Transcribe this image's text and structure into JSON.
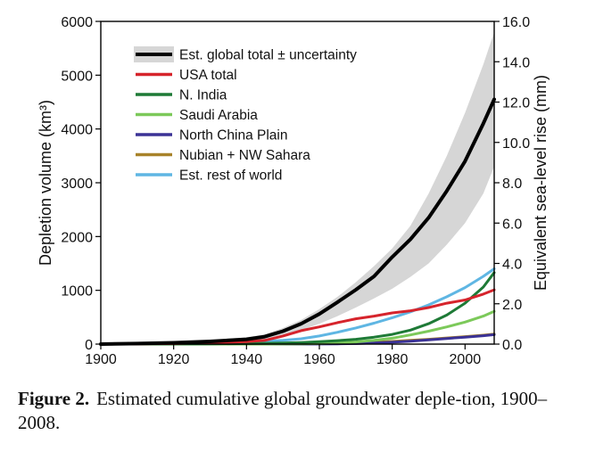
{
  "chart_data": {
    "type": "line",
    "ylabel": "Depletion volume (km³)",
    "y2label": "Equivalent sea-level rise (mm)",
    "xlim": [
      1900,
      2008
    ],
    "ylim": [
      0,
      6000
    ],
    "y2lim": [
      0,
      16.0
    ],
    "xticks": [
      "1900",
      "1920",
      "1940",
      "1960",
      "1980",
      "2000"
    ],
    "yticks": [
      "0",
      "1000",
      "2000",
      "3000",
      "4000",
      "5000",
      "6000"
    ],
    "y2ticks": [
      "0.0",
      "2.0",
      "4.0",
      "6.0",
      "8.0",
      "10.0",
      "12.0",
      "14.0",
      "16.0"
    ],
    "legend_position": "top-left",
    "grid": false,
    "x": [
      1900,
      1910,
      1920,
      1930,
      1940,
      1945,
      1950,
      1955,
      1960,
      1965,
      1970,
      1975,
      1980,
      1985,
      1990,
      1995,
      2000,
      2005,
      2008
    ],
    "band": {
      "name": "Est. global total ± uncertainty",
      "color": "#d6d6d6",
      "lower": [
        0,
        5,
        15,
        30,
        55,
        80,
        150,
        260,
        380,
        520,
        680,
        850,
        1030,
        1250,
        1500,
        1850,
        2250,
        2800,
        3300
      ],
      "upper": [
        0,
        15,
        35,
        70,
        130,
        180,
        300,
        450,
        650,
        880,
        1150,
        1450,
        1780,
        2200,
        2800,
        3500,
        4300,
        5200,
        5800
      ]
    },
    "series": [
      {
        "name": "Est. global total ± uncertainty",
        "color": "#000000",
        "width": 4,
        "values": [
          0,
          10,
          25,
          50,
          90,
          140,
          240,
          380,
          560,
          780,
          1010,
          1260,
          1620,
          1950,
          2350,
          2850,
          3400,
          4100,
          4550
        ]
      },
      {
        "name": "USA total",
        "color": "#d6242c",
        "width": 3,
        "values": [
          0,
          3,
          10,
          25,
          45,
          70,
          150,
          250,
          320,
          400,
          470,
          520,
          580,
          620,
          680,
          760,
          820,
          930,
          1010
        ]
      },
      {
        "name": "N. India",
        "color": "#1e7a36",
        "width": 3,
        "values": [
          0,
          0,
          2,
          5,
          10,
          15,
          20,
          30,
          45,
          65,
          90,
          130,
          180,
          260,
          380,
          540,
          760,
          1060,
          1330
        ]
      },
      {
        "name": "Saudi Arabia",
        "color": "#7cc95a",
        "width": 3,
        "values": [
          0,
          0,
          0,
          0,
          0,
          0,
          2,
          5,
          10,
          20,
          40,
          70,
          110,
          170,
          240,
          320,
          410,
          520,
          610
        ]
      },
      {
        "name": "North China Plain",
        "color": "#3b3296",
        "width": 3,
        "values": [
          0,
          0,
          0,
          0,
          0,
          0,
          0,
          0,
          2,
          5,
          10,
          20,
          35,
          55,
          80,
          105,
          130,
          155,
          175
        ]
      },
      {
        "name": "Nubian + NW Sahara",
        "color": "#a8832a",
        "width": 3,
        "values": [
          0,
          0,
          0,
          0,
          0,
          0,
          2,
          5,
          10,
          15,
          25,
          35,
          50,
          70,
          90,
          115,
          140,
          165,
          185
        ]
      },
      {
        "name": "Est. rest of world",
        "color": "#5fb6e3",
        "width": 3,
        "values": [
          0,
          5,
          12,
          22,
          35,
          50,
          70,
          100,
          150,
          220,
          300,
          390,
          490,
          600,
          730,
          880,
          1050,
          1260,
          1400
        ]
      }
    ]
  },
  "caption": {
    "label": "Figure 2.",
    "text": "Estimated cumulative global groundwater deple-tion, 1900–2008."
  }
}
